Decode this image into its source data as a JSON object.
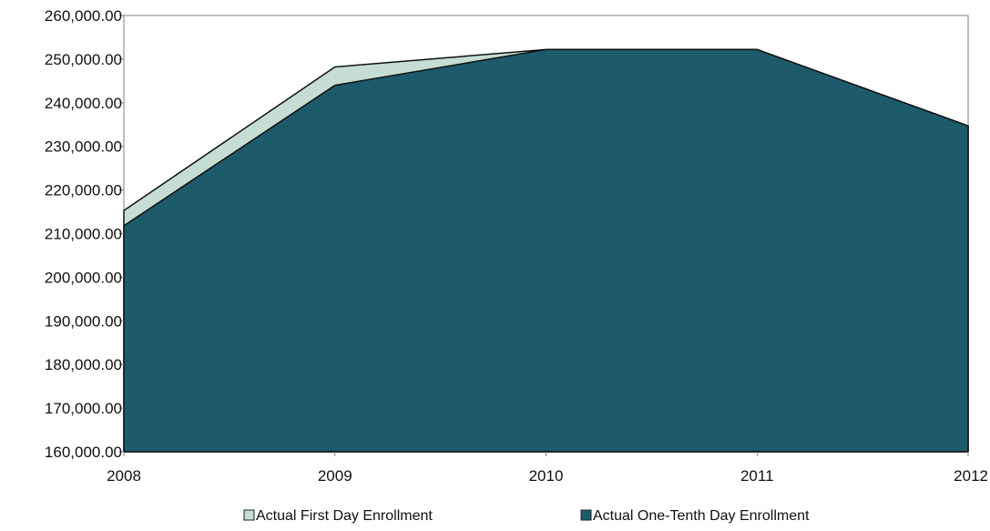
{
  "chart_data": {
    "type": "area",
    "x": [
      2008,
      2009,
      2010,
      2011,
      2012
    ],
    "x_tick_labels": [
      "2008",
      "2009",
      "2010",
      "2011",
      "2012"
    ],
    "series": [
      {
        "name": "Actual First Day Enrollment",
        "values": [
          215300,
          248200,
          252200,
          252200,
          234700
        ],
        "color": "#c5ddd2"
      },
      {
        "name": "Actual One-Tenth Day Enrollment",
        "values": [
          211800,
          244000,
          252200,
          252200,
          234700
        ],
        "color": "#1d5a6c"
      }
    ],
    "title": "",
    "xlabel": "",
    "ylabel": "",
    "ylim": [
      160000,
      260000
    ],
    "y_ticks": [
      160000,
      170000,
      180000,
      190000,
      200000,
      210000,
      220000,
      230000,
      240000,
      250000,
      260000
    ],
    "y_tick_labels": [
      "160,000.00",
      "170,000.00",
      "180,000.00",
      "190,000.00",
      "200,000.00",
      "210,000.00",
      "220,000.00",
      "230,000.00",
      "240,000.00",
      "250,000.00",
      "260,000.00"
    ],
    "grid": false,
    "legend_position": "bottom"
  }
}
